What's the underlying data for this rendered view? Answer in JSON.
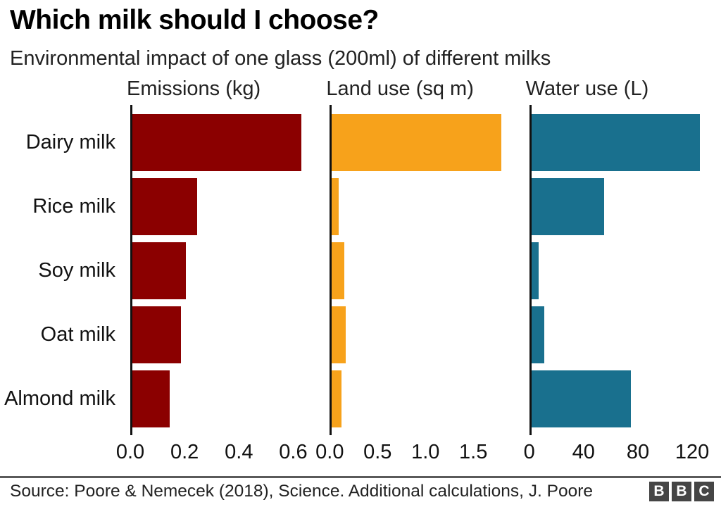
{
  "title": "Which milk should I choose?",
  "subtitle": "Environmental impact of one glass (200ml) of different milks",
  "source": "Source: Poore & Nemecek (2018), Science. Additional calculations, J. Poore",
  "logo": {
    "letters": [
      "B",
      "B",
      "C"
    ]
  },
  "colors": {
    "emissions": "#8b0000",
    "land": "#f7a21b",
    "water": "#19708e",
    "axis": "#111111",
    "rule": "#5a5a5a"
  },
  "chart_data": {
    "type": "bar",
    "orientation": "horizontal",
    "grid": false,
    "legend": false,
    "categories": [
      "Dairy milk",
      "Rice milk",
      "Soy milk",
      "Oat milk",
      "Almond milk"
    ],
    "panels": [
      {
        "title": "Emissions (kg)",
        "color": "#8b0000",
        "values": [
          0.63,
          0.24,
          0.2,
          0.18,
          0.14
        ],
        "ticks": [
          0,
          0.2,
          0.4,
          0.6
        ],
        "tick_labels": [
          "0.0",
          "0.2",
          "0.4",
          "0.6"
        ],
        "axis_max": 0.68
      },
      {
        "title": "Land use (sq m)",
        "color": "#f7a21b",
        "values": [
          1.79,
          0.07,
          0.13,
          0.15,
          0.1
        ],
        "ticks": [
          0,
          0.5,
          1.0,
          1.5
        ],
        "tick_labels": [
          "0.0",
          "0.5",
          "1.0",
          "1.5"
        ],
        "axis_max": 1.93
      },
      {
        "title": "Water use (L)",
        "color": "#19708e",
        "values": [
          125.6,
          54,
          5.6,
          9.6,
          74.3
        ],
        "ticks": [
          0,
          40,
          80,
          120
        ],
        "tick_labels": [
          "0",
          "40",
          "80",
          "120"
        ],
        "axis_max": 136
      }
    ]
  }
}
